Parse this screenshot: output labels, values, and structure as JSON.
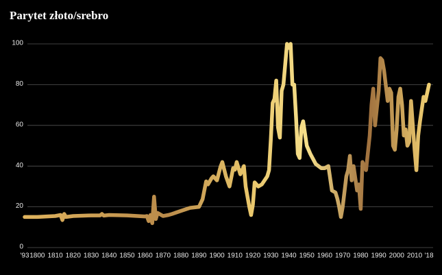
{
  "chart_data": {
    "type": "line",
    "title": "Parytet złoto/srebro",
    "x": [
      1793,
      1800,
      1810,
      1813,
      1814,
      1815,
      1816,
      1820,
      1830,
      1835,
      1836,
      1837,
      1840,
      1850,
      1860,
      1861,
      1862,
      1863,
      1864,
      1865,
      1866,
      1867,
      1870,
      1873,
      1875,
      1880,
      1885,
      1890,
      1892,
      1894,
      1895,
      1897,
      1898,
      1900,
      1902,
      1903,
      1905,
      1907,
      1909,
      1910,
      1911,
      1913,
      1915,
      1916,
      1918,
      1919,
      1920,
      1921,
      1923,
      1925,
      1928,
      1929,
      1930,
      1931,
      1932,
      1933,
      1934,
      1935,
      1936,
      1937,
      1938,
      1939,
      1940,
      1941,
      1942,
      1943,
      1944,
      1945,
      1946,
      1947,
      1948,
      1950,
      1952,
      1955,
      1958,
      1960,
      1962,
      1964,
      1966,
      1967,
      1968,
      1969,
      1970,
      1972,
      1973,
      1974,
      1975,
      1976,
      1978,
      1979,
      1980,
      1981,
      1983,
      1985,
      1986,
      1987,
      1988,
      1990,
      1991,
      1992,
      1993,
      1995,
      1996,
      1997,
      1998,
      1999,
      2000,
      2001,
      2002,
      2003,
      2004,
      2005,
      2006,
      2007,
      2008,
      2009,
      2010,
      2011,
      2012,
      2013,
      2014,
      2015,
      2016,
      2017,
      2018
    ],
    "series": [
      {
        "color": "#e0b45e",
        "values": [
          15,
          15,
          15.5,
          16,
          13.5,
          16.5,
          15,
          15.5,
          15.8,
          15.8,
          16.5,
          15.7,
          16,
          15.8,
          15.3,
          15.5,
          13,
          16,
          12,
          25,
          14,
          17,
          15.5,
          16,
          16.5,
          18,
          19.5,
          20,
          23.7,
          32.5,
          31,
          34,
          35,
          33,
          39.7,
          42,
          35,
          30,
          39,
          38.2,
          42,
          36,
          40,
          30,
          20,
          16,
          21,
          32,
          30,
          31,
          35,
          38,
          53,
          71,
          73,
          82,
          59,
          54,
          77,
          80,
          90,
          100,
          98,
          100,
          80,
          80,
          64,
          46,
          44,
          59,
          62,
          50,
          46,
          41,
          39,
          39,
          40,
          28,
          27,
          24,
          20,
          15,
          20,
          35,
          38,
          45,
          33,
          40,
          28,
          31,
          19,
          42,
          38,
          55,
          70,
          78,
          60,
          77,
          93,
          92,
          87,
          72,
          78,
          76,
          50,
          48,
          58,
          74,
          78,
          70,
          55,
          58,
          50,
          52,
          72,
          60,
          48,
          38,
          55,
          62,
          68,
          74,
          72,
          76,
          80
        ]
      }
    ],
    "xlim": [
      1793,
      2018
    ],
    "xticks": [
      {
        "value": 1793,
        "label": "'93"
      },
      1800,
      1810,
      1820,
      1830,
      1840,
      1850,
      1860,
      1870,
      1880,
      1890,
      1900,
      1910,
      1920,
      1930,
      1940,
      1950,
      1960,
      1970,
      1980,
      1990,
      2000,
      2010,
      {
        "value": 2018,
        "label": "'18"
      }
    ],
    "ylim": [
      0,
      100
    ],
    "yticks": [
      0,
      20,
      40,
      60,
      80,
      100
    ],
    "grid": true
  }
}
